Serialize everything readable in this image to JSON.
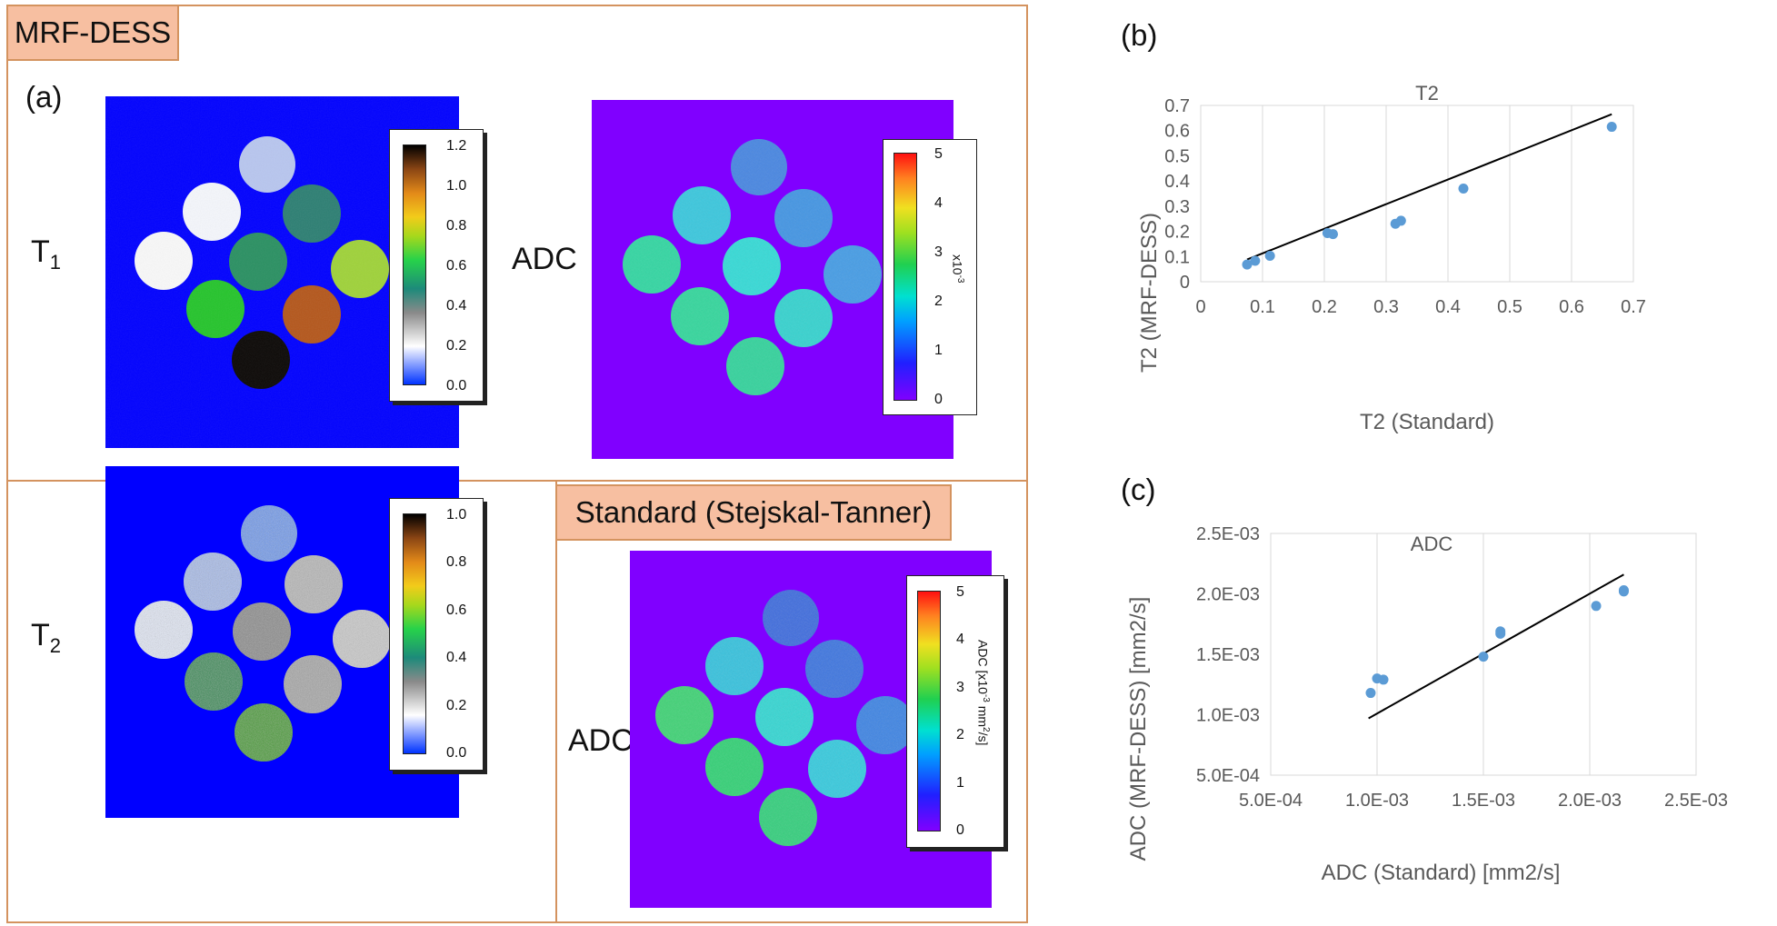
{
  "figure": {
    "mrf_tag": "MRF-DESS",
    "standard_tag": "Standard (Stejskal-Tanner)",
    "panel_a": "(a)",
    "panel_b": "(b)",
    "panel_c": "(c)"
  },
  "maps": {
    "t1": {
      "label_main": "T",
      "label_sub": "1",
      "colorbar_ticks": [
        "1.2",
        "1.0",
        "0.8",
        "0.6",
        "0.4",
        "0.2",
        "0.0"
      ]
    },
    "t2": {
      "label_main": "T",
      "label_sub": "2",
      "colorbar_ticks": [
        "1.0",
        "0.8",
        "0.6",
        "0.4",
        "0.2",
        "0.0"
      ]
    },
    "adc_mrf": {
      "label": "ADC",
      "colorbar_ticks": [
        "5",
        "4",
        "3",
        "2",
        "1",
        "0"
      ],
      "unit_base": "x10",
      "unit_exp": "-3"
    },
    "adc_std": {
      "label": "ADC",
      "colorbar_ticks": [
        "5",
        "4",
        "3",
        "2",
        "1",
        "0"
      ],
      "unit_text": "ADC [x10",
      "unit_exp": "-3",
      "unit_tail": " mm",
      "unit_exp2": "2",
      "unit_end": "/s]"
    }
  },
  "colors": {
    "background_blue": "#0000ff",
    "background_violet": "#8000ff",
    "frame": "#d4935f",
    "tag_fill": "#f7bfa1",
    "marker": "#5b9bd5",
    "fit_line": "#000000"
  },
  "chart_data": [
    {
      "type": "scatter",
      "title": "T2",
      "xlabel": "T2 (Standard)",
      "ylabel": "T2 (MRF-DESS)",
      "xlim": [
        0,
        0.7
      ],
      "ylim": [
        0,
        0.7
      ],
      "xticks": [
        "0",
        "0.1",
        "0.2",
        "0.3",
        "0.4",
        "0.5",
        "0.6",
        "0.7"
      ],
      "yticks": [
        "0",
        "0.1",
        "0.2",
        "0.3",
        "0.4",
        "0.5",
        "0.6",
        "0.7"
      ],
      "x": [
        0.075,
        0.088,
        0.112,
        0.205,
        0.214,
        0.315,
        0.324,
        0.425,
        0.665
      ],
      "y": [
        0.068,
        0.083,
        0.103,
        0.193,
        0.189,
        0.23,
        0.242,
        0.37,
        0.615
      ],
      "fit_line": [
        [
          0.075,
          0.088
        ],
        [
          0.665,
          0.665
        ]
      ],
      "grid": "vertical"
    },
    {
      "type": "scatter",
      "title": "ADC",
      "xlabel": "ADC (Standard) [mm2/s]",
      "ylabel": "ADC (MRF-DESS) [mm2/s]",
      "xlim": [
        0.0005,
        0.0025
      ],
      "ylim": [
        0.0005,
        0.0025
      ],
      "xticks": [
        "5.0E-04",
        "1.0E-03",
        "1.5E-03",
        "2.0E-03",
        "2.5E-03"
      ],
      "yticks": [
        "5.0E-04",
        "1.0E-03",
        "1.5E-03",
        "2.0E-03",
        "2.5E-03"
      ],
      "x": [
        0.00097,
        0.001,
        0.00103,
        0.0015,
        0.00158,
        0.00158,
        0.00203,
        0.00216,
        0.00216
      ],
      "y": [
        0.00118,
        0.0013,
        0.00129,
        0.00148,
        0.00167,
        0.00169,
        0.0019,
        0.00202,
        0.00203
      ],
      "fit_line": [
        [
          0.00096,
          0.00097
        ],
        [
          0.00216,
          0.00216
        ]
      ],
      "grid": "vertical"
    }
  ]
}
